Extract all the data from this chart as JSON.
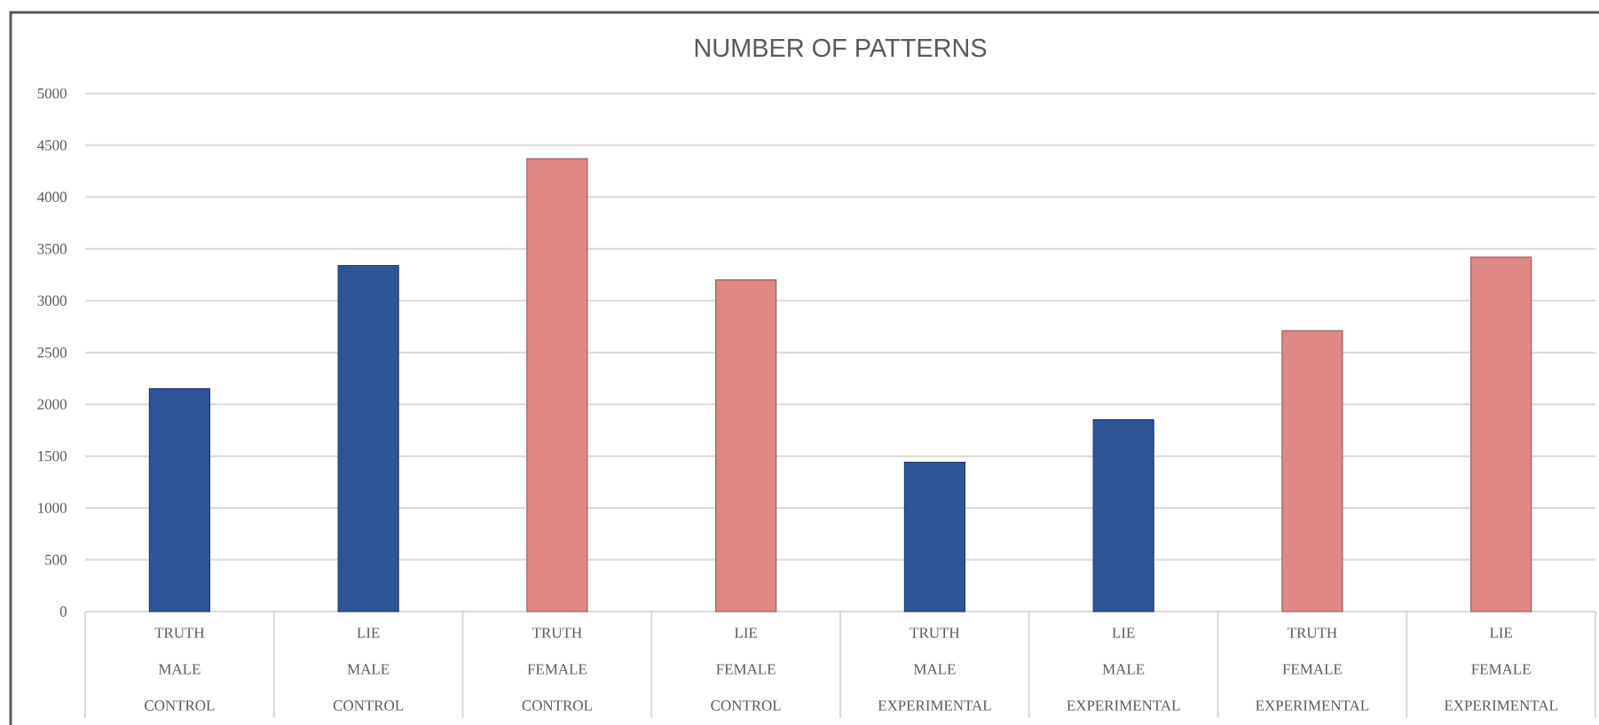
{
  "chart_data": {
    "type": "bar",
    "title": "NUMBER OF PATTERNS",
    "categories": [
      "TRUTH MALE CONTROL",
      "LIE MALE CONTROL",
      "TRUTH FEMALE CONTROL",
      "LIE FEMALE CONTROL",
      "TRUTH MALE EXPERIMENTAL",
      "LIE MALE EXPERIMENTAL",
      "TRUTH FEMALE EXPERIMENTAL",
      "LIE FEMALE EXPERIMENTAL"
    ],
    "values": [
      2150,
      3340,
      4370,
      3200,
      1440,
      1850,
      2710,
      3420
    ],
    "colors": [
      "#2e5597",
      "#2e5597",
      "#df8886",
      "#df8886",
      "#2e5597",
      "#2e5597",
      "#df8886",
      "#df8886"
    ],
    "ylim": [
      0,
      5000
    ],
    "yticks": [
      0,
      500,
      1000,
      1500,
      2000,
      2500,
      3000,
      3500,
      4000,
      4500,
      5000
    ],
    "grid": "y"
  }
}
